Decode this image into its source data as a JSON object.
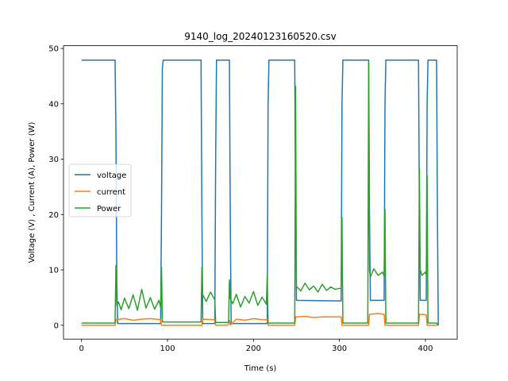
{
  "chart_data": {
    "type": "line",
    "title": "9140_log_20240123160520.csv",
    "xlabel": "Time (s)",
    "ylabel": "Voltage (V) , Current (A), Power (W)",
    "xlim": [
      -21,
      437
    ],
    "ylim": [
      -2.5,
      50.5
    ],
    "xticks": [
      0,
      100,
      200,
      300,
      400
    ],
    "yticks": [
      0,
      10,
      20,
      30,
      40,
      50
    ],
    "grid": false,
    "legend": "center-left",
    "series": [
      {
        "name": "voltage",
        "color": "#1f77b4",
        "x": [
          0,
          39,
          40,
          41,
          42,
          43,
          92,
          93,
          94,
          95,
          139,
          140,
          141,
          155,
          156,
          157,
          172,
          173,
          174,
          216,
          217,
          218,
          248,
          249,
          250,
          302,
          303,
          304,
          334,
          335,
          336,
          352,
          353,
          354,
          392,
          393,
          394,
          401,
          402,
          403,
          413,
          414,
          415
        ],
        "y": [
          47.9,
          47.9,
          35,
          8,
          0.3,
          0.3,
          0.3,
          20,
          46.5,
          47.9,
          47.9,
          20,
          0.3,
          0.3,
          30,
          47.9,
          47.9,
          20,
          0.3,
          0.3,
          40,
          47.9,
          47.9,
          20,
          4.5,
          4.4,
          40,
          47.9,
          47.9,
          20,
          4.5,
          4.5,
          40,
          47.9,
          47.9,
          20,
          4.5,
          4.5,
          40,
          47.9,
          47.9,
          20,
          0
        ]
      },
      {
        "name": "current",
        "color": "#ff7f0e",
        "x": [
          0,
          39,
          40,
          50,
          60,
          70,
          80,
          92,
          93,
          140,
          141,
          155,
          156,
          160,
          170,
          172,
          173,
          180,
          190,
          200,
          210,
          216,
          217,
          248,
          249,
          260,
          270,
          280,
          290,
          302,
          303,
          334,
          335,
          345,
          352,
          353,
          392,
          393,
          401,
          402,
          413,
          414,
          415
        ],
        "y": [
          0,
          0,
          1,
          1.2,
          0.9,
          1.1,
          1.2,
          1.0,
          0,
          0,
          1.1,
          1.0,
          0,
          0,
          0,
          0.9,
          0,
          1.1,
          0.9,
          1.2,
          1.0,
          1.0,
          0,
          0,
          1.5,
          1.6,
          1.4,
          1.5,
          1.5,
          1.5,
          0,
          0,
          2.0,
          2.1,
          2.0,
          0,
          0,
          2.0,
          1.9,
          0,
          0,
          0,
          0
        ]
      },
      {
        "name": "Power",
        "color": "#2ca02c",
        "x": [
          0,
          39,
          40,
          41,
          43,
          46,
          50,
          55,
          60,
          65,
          70,
          75,
          80,
          85,
          90,
          92,
          93,
          94,
          139,
          140,
          141,
          145,
          150,
          155,
          156,
          157,
          171,
          172,
          173,
          176,
          180,
          185,
          190,
          195,
          200,
          205,
          210,
          215,
          216,
          217,
          248,
          249,
          250,
          255,
          260,
          265,
          270,
          275,
          280,
          285,
          290,
          295,
          302,
          303,
          304,
          333,
          334,
          335,
          336,
          340,
          345,
          350,
          352,
          353,
          354,
          392,
          393,
          394,
          396,
          400,
          401,
          402,
          403,
          413,
          414,
          415
        ],
        "y": [
          0.4,
          0.4,
          10.8,
          3.5,
          4.2,
          2.8,
          4.9,
          3.0,
          5.5,
          2.7,
          6.5,
          3.1,
          5.0,
          2.9,
          4.5,
          3.2,
          10.5,
          0.6,
          0.6,
          10.5,
          5.5,
          4.3,
          6.0,
          4.6,
          0.5,
          0.5,
          0.5,
          8.2,
          4.8,
          3.9,
          5.6,
          3.3,
          5.2,
          4.0,
          6.1,
          3.6,
          5.1,
          3.8,
          9.0,
          0.4,
          0.4,
          43.2,
          7.0,
          6.2,
          7.6,
          6.4,
          7.1,
          6.0,
          7.4,
          6.3,
          6.9,
          6.5,
          6.7,
          19.5,
          0.4,
          0.4,
          47.5,
          9.8,
          8.7,
          10.2,
          9.0,
          9.6,
          8.9,
          21.0,
          0.4,
          0.4,
          28.3,
          10.0,
          9.0,
          9.6,
          9.1,
          27.0,
          0.4,
          0.4,
          0.2,
          0
        ]
      }
    ]
  }
}
